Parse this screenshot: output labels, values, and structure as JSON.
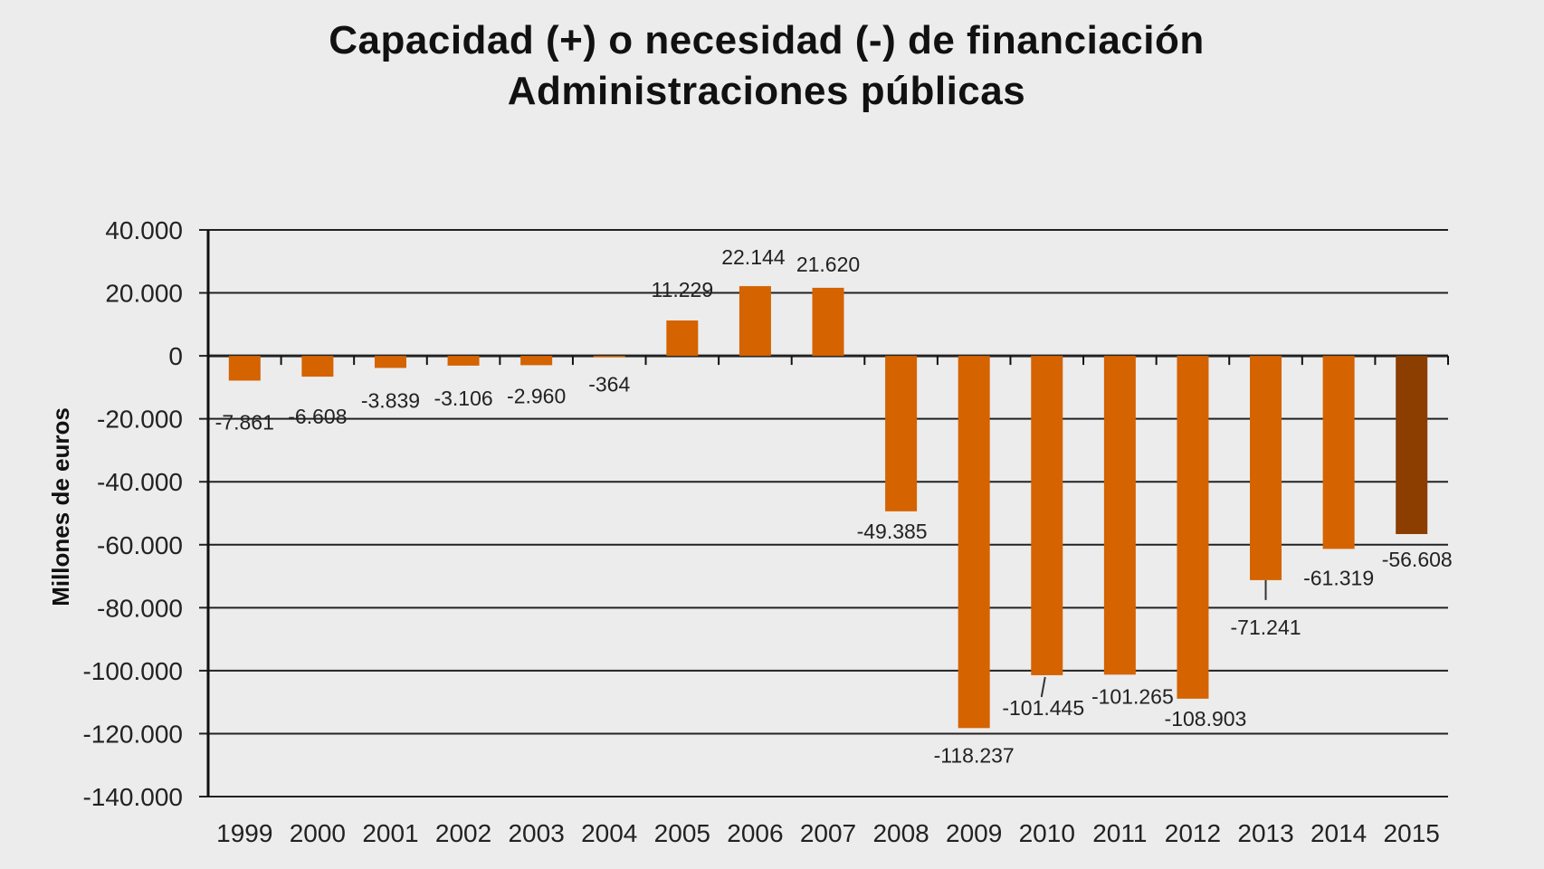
{
  "chart_data": {
    "type": "bar",
    "title": "Capacidad (+) o necesidad (-) de financiación",
    "subtitle": "Administraciones públicas",
    "xlabel": "",
    "ylabel": "Millones de euros",
    "ylim": [
      -140000,
      40000
    ],
    "yticks": [
      40000,
      20000,
      0,
      -20000,
      -40000,
      -60000,
      -80000,
      -100000,
      -120000,
      -140000
    ],
    "ytick_labels": [
      "40.000",
      "20.000",
      "0",
      "-20.000",
      "-40.000",
      "-60.000",
      "-80.000",
      "-100.000",
      "-120.000",
      "-140.000"
    ],
    "grid": true,
    "categories": [
      "1999",
      "2000",
      "2001",
      "2002",
      "2003",
      "2004",
      "2005",
      "2006",
      "2007",
      "2008",
      "2009",
      "2010",
      "2011",
      "2012",
      "2013",
      "2014",
      "2015"
    ],
    "values": [
      -7861,
      -6608,
      -3839,
      -3106,
      -2960,
      -364,
      11229,
      22144,
      21620,
      -49385,
      -118237,
      -101445,
      -101265,
      -108903,
      -71241,
      -61319,
      -56608
    ],
    "value_labels": [
      "-7.861",
      "-6.608",
      "-3.839",
      "-3.106",
      "-2.960",
      "-364",
      "11.229",
      "22.144",
      "21.620",
      "-49.385",
      "-118.237",
      "-101.445",
      "-101.265",
      "-108.903",
      "-71.241",
      "-61.319",
      "-56.608"
    ],
    "colors": {
      "bar": "#d46300",
      "highlight": "#8b3e00",
      "grid": "#222222",
      "background": "#ececec"
    },
    "highlight_category": "2015"
  }
}
